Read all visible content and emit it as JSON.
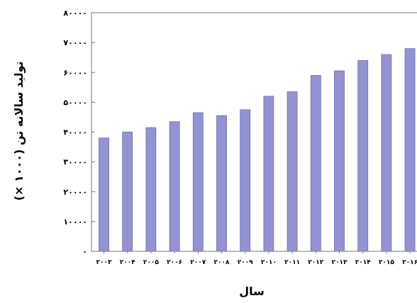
{
  "chart_data": {
    "type": "bar",
    "title": "",
    "xlabel": "سال",
    "ylabel": "تولید سالانه تن (۱۰۰۰ ×)",
    "categories": [
      "۲۰۰۳",
      "۲۰۰۴",
      "۲۰۰۵",
      "۲۰۰۶",
      "۲۰۰۷",
      "۲۰۰۸",
      "۲۰۰۹",
      "۲۰۱۰",
      "۲۰۱۱",
      "۲۰۱۲",
      "۲۰۱۳",
      "۲۰۱۴",
      "۲۰۱۵",
      "۲۰۱۶"
    ],
    "values": [
      38000,
      40000,
      41500,
      43500,
      46500,
      45500,
      47500,
      52000,
      53500,
      59000,
      60500,
      64000,
      66000,
      68000
    ],
    "ylim": [
      0,
      80000
    ],
    "yticks": [
      {
        "value": 0,
        "label": "۰"
      },
      {
        "value": 10000,
        "label": "۱۰۰۰۰"
      },
      {
        "value": 20000,
        "label": "۲۰۰۰۰"
      },
      {
        "value": 30000,
        "label": "۳۰۰۰۰"
      },
      {
        "value": 40000,
        "label": "۴۰۰۰۰"
      },
      {
        "value": 50000,
        "label": "۵۰۰۰۰"
      },
      {
        "value": 60000,
        "label": "۶۰۰۰۰"
      },
      {
        "value": 70000,
        "label": "۷۰۰۰۰"
      },
      {
        "value": 80000,
        "label": "۸۰۰۰۰"
      }
    ],
    "grid": false,
    "bar_color": "#9393d3",
    "bar_edge_color": "#6d6db0"
  }
}
